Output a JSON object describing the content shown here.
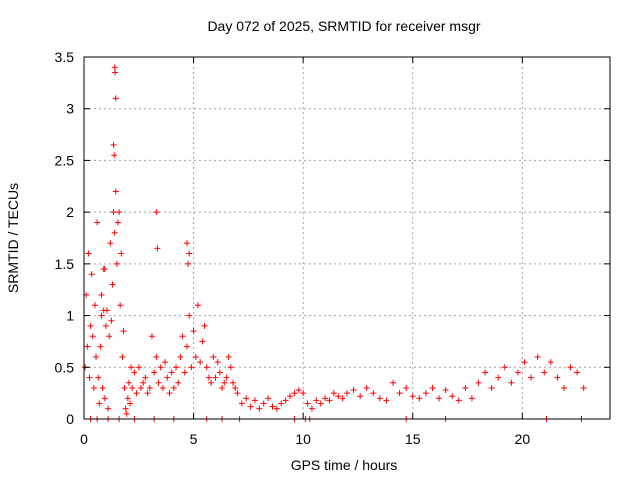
{
  "chart_data": {
    "type": "scatter",
    "title": "Day 072 of 2025, SRMTID for receiver msgr",
    "xlabel": "GPS time / hours",
    "ylabel": "SRMTID / TECUs",
    "xlim": [
      0,
      24
    ],
    "ylim": [
      0,
      3.5
    ],
    "xticks": [
      0,
      5,
      10,
      15,
      20
    ],
    "xtick_labels": [
      "0",
      "5",
      "10",
      "15",
      "20"
    ],
    "yticks": [
      0,
      0.5,
      1,
      1.5,
      2,
      2.5,
      3,
      3.5
    ],
    "ytick_labels": [
      "0",
      "0.5",
      "1",
      "1.5",
      "2",
      "2.5",
      "3",
      "3.5"
    ],
    "grid": true,
    "legend": "none",
    "marker": "plus",
    "marker_color": "#ff0000",
    "series": [
      {
        "name": "SRMTID",
        "x": [
          0.05,
          0.1,
          0.15,
          0.2,
          0.25,
          0.3,
          0.35,
          0.4,
          0.45,
          0.5,
          0.55,
          0.6,
          0.65,
          0.7,
          0.75,
          0.8,
          0.85,
          0.9,
          0.95,
          1.0,
          1.05,
          1.1,
          1.15,
          1.2,
          1.25,
          1.3,
          1.35,
          1.4,
          1.45,
          1.5,
          1.55,
          1.6,
          1.65,
          1.7,
          1.75,
          1.8,
          1.85,
          1.9,
          1.95,
          2.0,
          2.05,
          2.1,
          2.15,
          2.2,
          2.3,
          2.4,
          2.5,
          2.6,
          2.7,
          2.8,
          2.9,
          3.0,
          3.1,
          3.2,
          3.3,
          3.4,
          3.5,
          3.6,
          3.7,
          3.8,
          3.9,
          4.0,
          4.1,
          4.2,
          4.3,
          4.4,
          4.5,
          4.6,
          4.7,
          4.8,
          4.9,
          5.0,
          5.1,
          5.2,
          5.3,
          5.4,
          5.5,
          5.6,
          5.7,
          5.8,
          5.9,
          6.0,
          6.1,
          6.2,
          6.3,
          6.4,
          6.5,
          6.6,
          6.7,
          6.8,
          6.9,
          7.0,
          7.2,
          7.4,
          7.6,
          7.8,
          8.0,
          8.2,
          8.4,
          8.6,
          8.8,
          9.0,
          9.2,
          9.4,
          9.6,
          9.8,
          10.0,
          10.2,
          10.4,
          10.6,
          10.8,
          11.0,
          11.2,
          11.4,
          11.6,
          11.8,
          12.0,
          12.3,
          12.6,
          12.9,
          13.2,
          13.5,
          13.8,
          14.1,
          14.4,
          14.7,
          15.0,
          15.3,
          15.6,
          15.9,
          16.2,
          16.5,
          16.8,
          17.1,
          17.4,
          17.7,
          18.0,
          18.3,
          18.6,
          18.9,
          19.2,
          19.5,
          19.8,
          20.1,
          20.4,
          20.7,
          21.0,
          21.3,
          21.6,
          21.9,
          22.2,
          22.5,
          22.8,
          1.4,
          1.42,
          1.45,
          1.38,
          1.35,
          0.9,
          0.95,
          0.8,
          3.3,
          3.35,
          4.7,
          4.75,
          4.8,
          0.3,
          0.6,
          1.1,
          1.6,
          2.3,
          3.2,
          4.1,
          5.6,
          6.3,
          7.1,
          9.6,
          10.1,
          10.3,
          14.7,
          16.5,
          21.1,
          22.7
        ],
        "y": [
          0.5,
          1.2,
          0.7,
          1.6,
          0.4,
          0.9,
          1.4,
          0.8,
          0.3,
          1.1,
          0.6,
          1.9,
          0.4,
          0.15,
          0.7,
          1.0,
          0.3,
          1.45,
          0.2,
          0.9,
          1.05,
          0.1,
          0.8,
          1.7,
          0.95,
          1.3,
          2.65,
          1.8,
          2.2,
          1.5,
          1.9,
          2.0,
          1.1,
          1.6,
          0.6,
          0.85,
          0.3,
          0.1,
          0.05,
          0.2,
          0.35,
          0.15,
          0.5,
          0.3,
          0.45,
          0.25,
          0.5,
          0.3,
          0.35,
          0.4,
          0.25,
          0.3,
          0.8,
          0.45,
          0.6,
          0.35,
          0.5,
          0.3,
          0.55,
          0.4,
          0.25,
          0.45,
          0.3,
          0.5,
          0.35,
          0.6,
          0.8,
          0.45,
          0.7,
          1.0,
          0.5,
          0.85,
          0.6,
          1.1,
          0.55,
          0.75,
          0.9,
          0.5,
          0.4,
          0.35,
          0.6,
          0.4,
          0.55,
          0.45,
          0.3,
          0.35,
          0.4,
          0.6,
          0.5,
          0.35,
          0.3,
          0.25,
          0.15,
          0.2,
          0.12,
          0.18,
          0.1,
          0.15,
          0.2,
          0.12,
          0.1,
          0.15,
          0.18,
          0.22,
          0.25,
          0.28,
          0.25,
          0.15,
          0.1,
          0.18,
          0.15,
          0.2,
          0.18,
          0.25,
          0.22,
          0.2,
          0.25,
          0.28,
          0.22,
          0.3,
          0.25,
          0.2,
          0.18,
          0.35,
          0.25,
          0.3,
          0.22,
          0.2,
          0.25,
          0.3,
          0.2,
          0.28,
          0.22,
          0.18,
          0.3,
          0.2,
          0.35,
          0.45,
          0.3,
          0.4,
          0.5,
          0.35,
          0.45,
          0.55,
          0.4,
          0.6,
          0.45,
          0.55,
          0.4,
          0.3,
          0.5,
          0.45,
          0.3,
          3.4,
          3.35,
          3.1,
          2.55,
          2.0,
          1.05,
          1.45,
          1.2,
          2.0,
          1.65,
          1.7,
          1.5,
          1.6,
          0,
          0,
          0,
          0,
          0,
          0,
          0,
          0,
          0,
          0,
          0,
          0,
          0,
          0,
          0,
          0,
          0
        ]
      }
    ]
  }
}
